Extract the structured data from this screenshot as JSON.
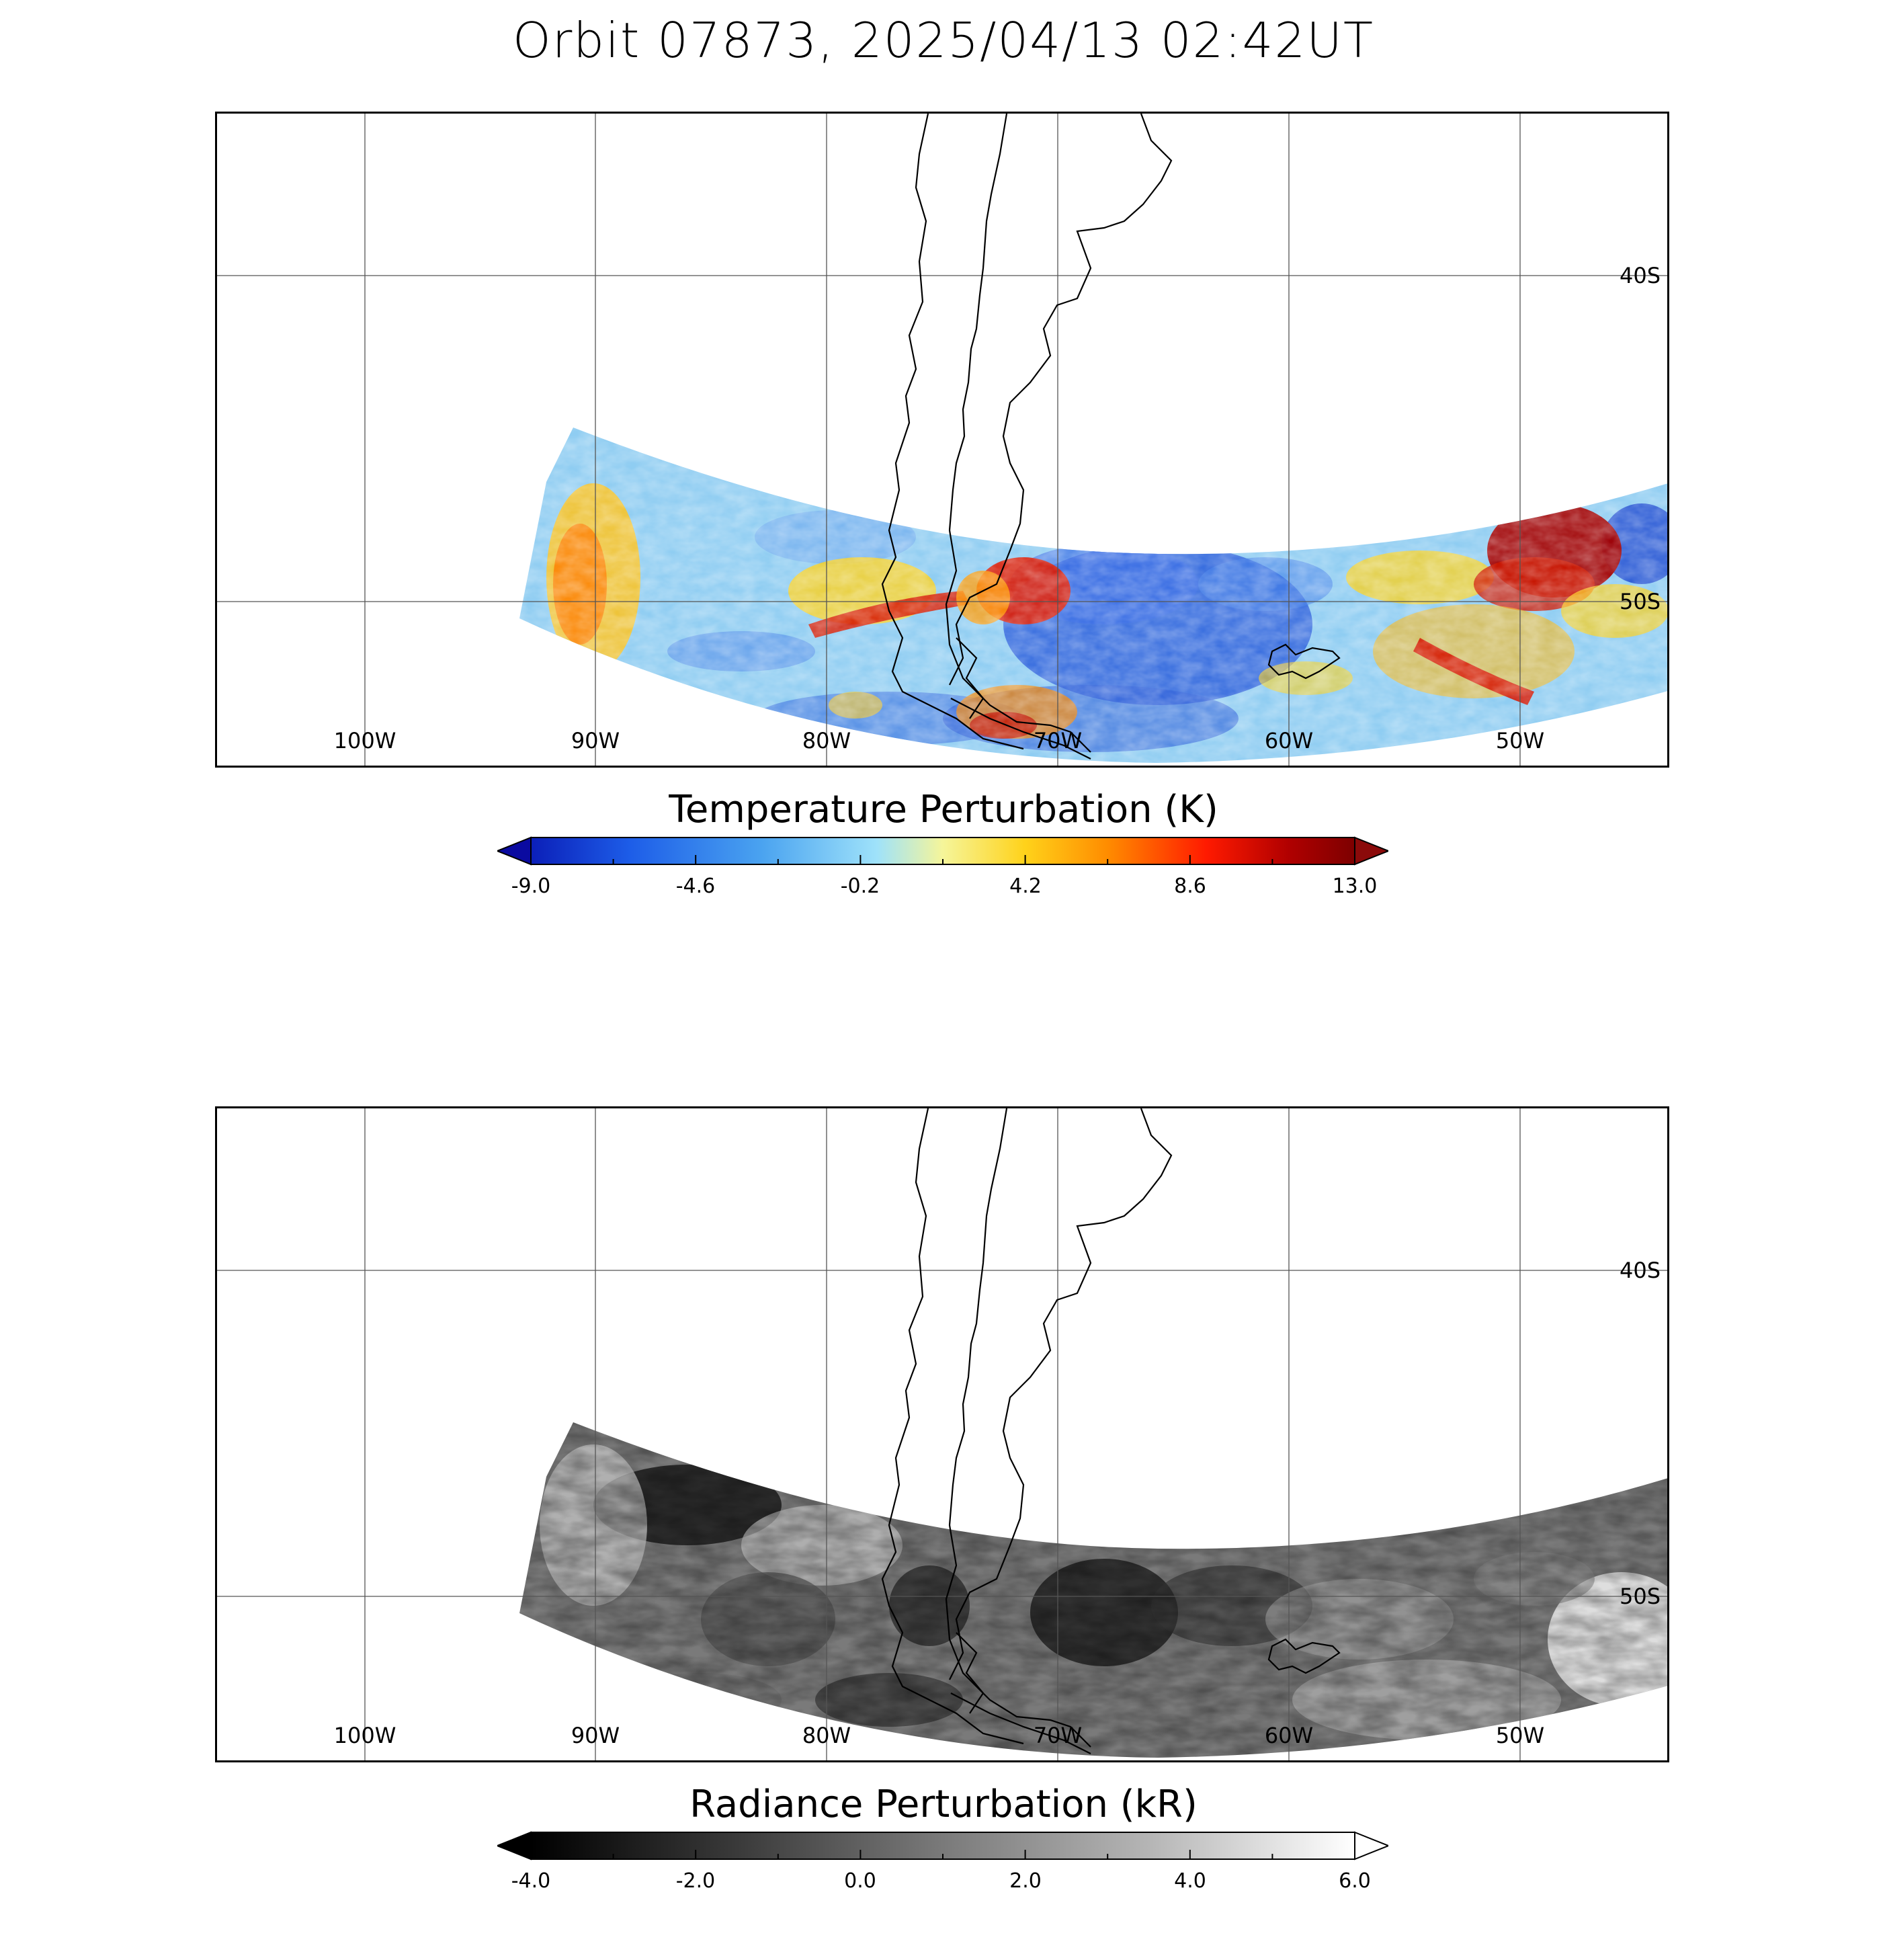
{
  "title": "Orbit 07873, 2025/04/13 02:42UT",
  "map_panels": [
    {
      "id": "temperature",
      "colorbar_title": "Temperature Perturbation (K)",
      "colorbar_ticks": [
        "-9.0",
        "-4.6",
        "-0.2",
        "4.2",
        "8.6",
        "13.0"
      ],
      "colorbar_range": [
        -9.0,
        13.0
      ],
      "colormap": [
        "#0b1fb8",
        "#1d5de8",
        "#4aa3f0",
        "#9fe2fa",
        "#f5f59a",
        "#ffd21a",
        "#ff8c00",
        "#ff1a00",
        "#b00000",
        "#7d0000"
      ],
      "under_color": "#0a0aa0",
      "over_color": "#8b0a0a"
    },
    {
      "id": "radiance",
      "colorbar_title": "Radiance Perturbation (kR)",
      "colorbar_ticks": [
        "-4.0",
        "-2.0",
        "0.0",
        "2.0",
        "4.0",
        "6.0"
      ],
      "colorbar_range": [
        -4.0,
        6.0
      ],
      "colormap": [
        "#000000",
        "#3a3a3a",
        "#7a7a7a",
        "#b5b5b5",
        "#ffffff"
      ],
      "under_color": "#000000",
      "over_color": "#ffffff"
    }
  ],
  "longitude_labels": [
    "100W",
    "90W",
    "80W",
    "70W",
    "60W",
    "50W"
  ],
  "latitude_labels": [
    "40S",
    "50S"
  ]
}
